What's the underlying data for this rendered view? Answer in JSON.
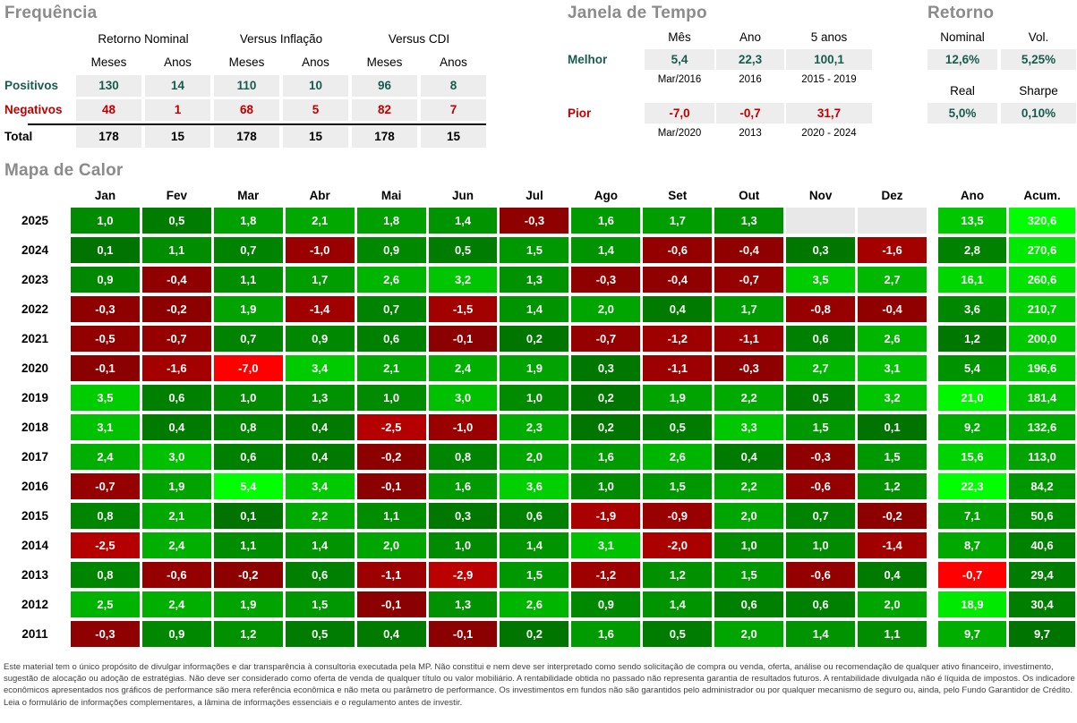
{
  "colors": {
    "title_gray": "#8B8B8B",
    "positive_text": "#175C4C",
    "negative_text": "#C00000",
    "value_cell_bg": "#EDEDED",
    "empty_heat_cell": "#E8E8E8",
    "heat_text": "#FFFFFF",
    "heat_extreme_negative": "#FF0000",
    "heat_extreme_positive": "#00FF00"
  },
  "frequencia": {
    "title": "Frequência",
    "groups": [
      "Retorno Nominal",
      "Versus Inflação",
      "Versus CDI"
    ],
    "sub_headers": [
      "Meses",
      "Anos",
      "Meses",
      "Anos",
      "Meses",
      "Anos"
    ],
    "rows": [
      {
        "label": "Positivos",
        "values": [
          "130",
          "14",
          "110",
          "10",
          "96",
          "8"
        ]
      },
      {
        "label": "Negativos",
        "values": [
          "48",
          "1",
          "68",
          "5",
          "82",
          "7"
        ]
      },
      {
        "label": "Total",
        "values": [
          "178",
          "15",
          "178",
          "15",
          "178",
          "15"
        ]
      }
    ]
  },
  "janela": {
    "title": "Janela de Tempo",
    "headers": [
      "Mês",
      "Ano",
      "5 anos"
    ],
    "rows": [
      {
        "label": "Melhor",
        "values": [
          "5,4",
          "22,3",
          "100,1"
        ],
        "dates": [
          "Mar/2016",
          "2016",
          "2015 - 2019"
        ]
      },
      {
        "label": "Pior",
        "values": [
          "-7,0",
          "-0,7",
          "31,7"
        ],
        "dates": [
          "Mar/2020",
          "2013",
          "2020 - 2024"
        ]
      }
    ]
  },
  "retorno": {
    "title": "Retorno",
    "rows": [
      {
        "headers": [
          "Nominal",
          "Vol."
        ],
        "values": [
          "12,6%",
          "5,25%"
        ]
      },
      {
        "headers": [
          "Real",
          "Sharpe"
        ],
        "values": [
          "5,0%",
          "0,10%"
        ]
      }
    ]
  },
  "heatmap": {
    "title": "Mapa de Calor",
    "month_headers": [
      "Jan",
      "Fev",
      "Mar",
      "Abr",
      "Mai",
      "Jun",
      "Jul",
      "Ago",
      "Set",
      "Out",
      "Nov",
      "Dez"
    ],
    "summary_headers": [
      "Ano",
      "Acum."
    ],
    "rows": [
      {
        "year": "2025",
        "months": [
          "1,0",
          "0,5",
          "1,8",
          "2,1",
          "1,8",
          "1,4",
          "-0,3",
          "1,6",
          "1,7",
          "1,3",
          null,
          null
        ],
        "ano": "13,5",
        "acum": "320,6"
      },
      {
        "year": "2024",
        "months": [
          "0,1",
          "1,1",
          "0,7",
          "-1,0",
          "0,9",
          "0,5",
          "1,5",
          "1,4",
          "-0,6",
          "-0,4",
          "0,3",
          "-1,6"
        ],
        "ano": "2,8",
        "acum": "270,6"
      },
      {
        "year": "2023",
        "months": [
          "0,9",
          "-0,4",
          "1,1",
          "1,7",
          "2,6",
          "3,2",
          "1,3",
          "-0,3",
          "-0,4",
          "-0,7",
          "3,5",
          "2,7"
        ],
        "ano": "16,1",
        "acum": "260,6"
      },
      {
        "year": "2022",
        "months": [
          "-0,3",
          "-0,2",
          "1,9",
          "-1,4",
          "0,7",
          "-1,5",
          "1,4",
          "2,0",
          "0,4",
          "1,7",
          "-0,8",
          "-0,4"
        ],
        "ano": "3,6",
        "acum": "210,7"
      },
      {
        "year": "2021",
        "months": [
          "-0,5",
          "-0,7",
          "0,7",
          "0,9",
          "0,6",
          "-0,1",
          "0,2",
          "-0,7",
          "-1,2",
          "-1,1",
          "0,6",
          "2,6"
        ],
        "ano": "1,2",
        "acum": "200,0"
      },
      {
        "year": "2020",
        "months": [
          "-0,1",
          "-1,6",
          "-7,0",
          "3,4",
          "2,1",
          "2,4",
          "1,9",
          "0,3",
          "-1,1",
          "-0,3",
          "2,7",
          "3,1"
        ],
        "ano": "5,4",
        "acum": "196,6"
      },
      {
        "year": "2019",
        "months": [
          "3,5",
          "0,6",
          "1,0",
          "1,3",
          "1,0",
          "3,0",
          "1,0",
          "0,2",
          "1,9",
          "2,2",
          "0,5",
          "3,2"
        ],
        "ano": "21,0",
        "acum": "181,4"
      },
      {
        "year": "2018",
        "months": [
          "3,1",
          "0,4",
          "0,8",
          "0,4",
          "-2,5",
          "-1,0",
          "2,3",
          "0,2",
          "0,5",
          "3,3",
          "1,5",
          "0,1"
        ],
        "ano": "9,2",
        "acum": "132,6"
      },
      {
        "year": "2017",
        "months": [
          "2,4",
          "3,0",
          "0,6",
          "0,4",
          "-0,2",
          "0,8",
          "2,0",
          "1,6",
          "2,6",
          "0,4",
          "-0,3",
          "1,5"
        ],
        "ano": "15,6",
        "acum": "113,0"
      },
      {
        "year": "2016",
        "months": [
          "-0,7",
          "1,9",
          "5,4",
          "3,4",
          "-0,1",
          "1,6",
          "3,6",
          "1,0",
          "1,5",
          "2,2",
          "-0,6",
          "1,2"
        ],
        "ano": "22,3",
        "acum": "84,2"
      },
      {
        "year": "2015",
        "months": [
          "0,8",
          "2,1",
          "0,1",
          "2,2",
          "1,1",
          "0,3",
          "0,6",
          "-1,9",
          "-0,9",
          "2,0",
          "0,7",
          "-0,2"
        ],
        "ano": "7,1",
        "acum": "50,6"
      },
      {
        "year": "2014",
        "months": [
          "-2,5",
          "2,4",
          "1,1",
          "1,4",
          "2,0",
          "1,0",
          "1,4",
          "3,1",
          "-2,0",
          "1,0",
          "1,0",
          "-1,4"
        ],
        "ano": "8,7",
        "acum": "40,6"
      },
      {
        "year": "2013",
        "months": [
          "0,8",
          "-0,6",
          "-0,2",
          "0,6",
          "-1,1",
          "-2,9",
          "1,5",
          "-1,2",
          "1,2",
          "1,5",
          "-0,6",
          "0,4"
        ],
        "ano": "-0,7",
        "acum": "29,4"
      },
      {
        "year": "2012",
        "months": [
          "2,5",
          "2,4",
          "1,9",
          "1,5",
          "-0,1",
          "1,3",
          "2,6",
          "0,9",
          "1,4",
          "0,6",
          "0,6",
          "2,0"
        ],
        "ano": "18,9",
        "acum": "30,4"
      },
      {
        "year": "2011",
        "months": [
          "-0,3",
          "0,9",
          "1,2",
          "0,5",
          "0,4",
          "-0,1",
          "0,2",
          "1,6",
          "0,5",
          "2,0",
          "1,4",
          "1,1"
        ],
        "ano": "9,7",
        "acum": "9,7"
      }
    ]
  },
  "chart_data": {
    "type": "heatmap",
    "title": "Mapa de Calor",
    "x_labels": [
      "Jan",
      "Fev",
      "Mar",
      "Abr",
      "Mai",
      "Jun",
      "Jul",
      "Ago",
      "Set",
      "Out",
      "Nov",
      "Dez",
      "Ano",
      "Acum."
    ],
    "y_labels": [
      "2025",
      "2024",
      "2023",
      "2022",
      "2021",
      "2020",
      "2019",
      "2018",
      "2017",
      "2016",
      "2015",
      "2014",
      "2013",
      "2012",
      "2011"
    ],
    "monthly_values": [
      [
        1.0,
        0.5,
        1.8,
        2.1,
        1.8,
        1.4,
        -0.3,
        1.6,
        1.7,
        1.3,
        null,
        null
      ],
      [
        0.1,
        1.1,
        0.7,
        -1.0,
        0.9,
        0.5,
        1.5,
        1.4,
        -0.6,
        -0.4,
        0.3,
        -1.6
      ],
      [
        0.9,
        -0.4,
        1.1,
        1.7,
        2.6,
        3.2,
        1.3,
        -0.3,
        -0.4,
        -0.7,
        3.5,
        2.7
      ],
      [
        -0.3,
        -0.2,
        1.9,
        -1.4,
        0.7,
        -1.5,
        1.4,
        2.0,
        0.4,
        1.7,
        -0.8,
        -0.4
      ],
      [
        -0.5,
        -0.7,
        0.7,
        0.9,
        0.6,
        -0.1,
        0.2,
        -0.7,
        -1.2,
        -1.1,
        0.6,
        2.6
      ],
      [
        -0.1,
        -1.6,
        -7.0,
        3.4,
        2.1,
        2.4,
        1.9,
        0.3,
        -1.1,
        -0.3,
        2.7,
        3.1
      ],
      [
        3.5,
        0.6,
        1.0,
        1.3,
        1.0,
        3.0,
        1.0,
        0.2,
        1.9,
        2.2,
        0.5,
        3.2
      ],
      [
        3.1,
        0.4,
        0.8,
        0.4,
        -2.5,
        -1.0,
        2.3,
        0.2,
        0.5,
        3.3,
        1.5,
        0.1
      ],
      [
        2.4,
        3.0,
        0.6,
        0.4,
        -0.2,
        0.8,
        2.0,
        1.6,
        2.6,
        0.4,
        -0.3,
        1.5
      ],
      [
        -0.7,
        1.9,
        5.4,
        3.4,
        -0.1,
        1.6,
        3.6,
        1.0,
        1.5,
        2.2,
        -0.6,
        1.2
      ],
      [
        0.8,
        2.1,
        0.1,
        2.2,
        1.1,
        0.3,
        0.6,
        -1.9,
        -0.9,
        2.0,
        0.7,
        -0.2
      ],
      [
        -2.5,
        2.4,
        1.1,
        1.4,
        2.0,
        1.0,
        1.4,
        3.1,
        -2.0,
        1.0,
        1.0,
        -1.4
      ],
      [
        0.8,
        -0.6,
        -0.2,
        0.6,
        -1.1,
        -2.9,
        1.5,
        -1.2,
        1.2,
        1.5,
        -0.6,
        0.4
      ],
      [
        2.5,
        2.4,
        1.9,
        1.5,
        -0.1,
        1.3,
        2.6,
        0.9,
        1.4,
        0.6,
        0.6,
        2.0
      ],
      [
        -0.3,
        0.9,
        1.2,
        0.5,
        0.4,
        -0.1,
        0.2,
        1.6,
        0.5,
        2.0,
        1.4,
        1.1
      ]
    ],
    "ano_values": [
      13.5,
      2.8,
      16.1,
      3.6,
      1.2,
      5.4,
      21.0,
      9.2,
      15.6,
      22.3,
      7.1,
      8.7,
      -0.7,
      18.9,
      9.7
    ],
    "acum_values": [
      320.6,
      270.6,
      260.6,
      210.7,
      200.0,
      196.6,
      181.4,
      132.6,
      113.0,
      84.2,
      50.6,
      40.6,
      29.4,
      30.4,
      9.7
    ],
    "color_scale": {
      "positive": "dark green (near 0) to bright green (max)",
      "negative": "dark red (near 0) to bright red (min)",
      "empty": "#E8E8E8",
      "legend_position": "none",
      "grid": "white gaps between cells"
    }
  },
  "disclaimer": {
    "lines": [
      "Este material tem o único propósito de divulgar informações e dar transparência à consultoria executada pela MP. Não constitui e nem deve ser interpretado como sendo solicitação de compra ou venda, oferta, análise ou recomendação de qualquer ativo financeiro, investimento,",
      "sugestão de alocação ou adoção de estratégias. Não deve ser considerado como oferta de venda de qualquer título ou valor mobiliário. A rentabilidade obtida no passado não representa garantia de resultados futuros. A rentabilidade divulgada não é líquida de impostos. Os indicadores",
      "econômicos apresentados nos gráficos de performance são mera referência econômica e não meta ou parâmetro de performance. Os investimentos em fundos não são garantidos pelo administrador ou por qualquer mecanismo de seguro ou, ainda, pelo Fundo Garantidor de Crédito.",
      "Leia o formulário de informações complementares, a lâmina de informações essenciais e o regulamento antes de investir."
    ]
  }
}
